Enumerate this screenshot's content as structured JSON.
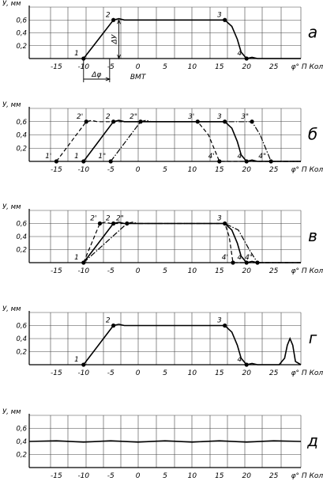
{
  "chart_data": [
    {
      "id": "a",
      "type": "line",
      "panel_letter": "а",
      "y_unit": "У, мм",
      "x_unit": "φ° П Кол В",
      "xlim": [
        -20,
        30
      ],
      "ylim": [
        0,
        0.8
      ],
      "x_ticks": [
        "-15",
        "-10",
        "-5",
        "0",
        "5",
        "10",
        "15",
        "20",
        "25"
      ],
      "y_ticks": [
        "0,2",
        "0,4",
        "0,6"
      ],
      "annotations": {
        "dy": "ΔУ",
        "dphi": "Δφ",
        "bmt": "ВМТ"
      },
      "series": [
        {
          "style": "solid",
          "x": [
            -10,
            -4.5,
            -3.5,
            -2.5,
            16,
            17.3,
            18.3,
            19,
            20,
            21,
            22,
            30
          ],
          "y": [
            0,
            0.6,
            0.62,
            0.6,
            0.6,
            0.5,
            0.3,
            0.1,
            0,
            0.02,
            0,
            0
          ]
        }
      ],
      "points": [
        {
          "label": "1",
          "x": -10,
          "y": 0
        },
        {
          "label": "2",
          "x": -4.5,
          "y": 0.6
        },
        {
          "label": "3",
          "x": 16,
          "y": 0.6
        },
        {
          "label": "4",
          "x": 20,
          "y": 0
        }
      ]
    },
    {
      "id": "b",
      "type": "line",
      "panel_letter": "б",
      "y_unit": "У, мм",
      "x_unit": "φ° П Кол В",
      "xlim": [
        -20,
        30
      ],
      "ylim": [
        0,
        0.8
      ],
      "x_ticks": [
        "-15",
        "-10",
        "-5",
        "0",
        "5",
        "10",
        "15",
        "20",
        "25"
      ],
      "y_ticks": [
        "0,2",
        "0,4",
        "0,6"
      ],
      "series": [
        {
          "style": "solid",
          "x": [
            -10,
            -4.5,
            -3.5,
            -2.5,
            16,
            17.3,
            18.3,
            19,
            20,
            21,
            22,
            30
          ],
          "y": [
            0,
            0.6,
            0.62,
            0.6,
            0.6,
            0.5,
            0.3,
            0.1,
            0,
            0.02,
            0,
            0
          ]
        },
        {
          "style": "dashed",
          "x": [
            -15,
            -9.5,
            -8.5,
            -7.5,
            11,
            13,
            15,
            30
          ],
          "y": [
            0,
            0.6,
            0.62,
            0.6,
            0.6,
            0.4,
            0,
            0
          ]
        },
        {
          "style": "dashdot",
          "x": [
            -5,
            0.5,
            1.5,
            2.5,
            21,
            22.5,
            24.5,
            30
          ],
          "y": [
            0,
            0.6,
            0.62,
            0.6,
            0.6,
            0.4,
            0,
            0
          ]
        }
      ],
      "points": [
        {
          "label": "1'",
          "x": -15,
          "y": 0
        },
        {
          "label": "1",
          "x": -10,
          "y": 0
        },
        {
          "label": "1\"",
          "x": -5,
          "y": 0
        },
        {
          "label": "2'",
          "x": -9.5,
          "y": 0.6
        },
        {
          "label": "2",
          "x": -4.5,
          "y": 0.6
        },
        {
          "label": "2\"",
          "x": 0.5,
          "y": 0.6
        },
        {
          "label": "3'",
          "x": 11,
          "y": 0.6
        },
        {
          "label": "3",
          "x": 16,
          "y": 0.6
        },
        {
          "label": "3\"",
          "x": 21,
          "y": 0.6
        },
        {
          "label": "4'",
          "x": 15,
          "y": 0
        },
        {
          "label": "4",
          "x": 20,
          "y": 0
        },
        {
          "label": "4\"",
          "x": 24.5,
          "y": 0
        }
      ]
    },
    {
      "id": "c",
      "type": "line",
      "panel_letter": "в",
      "y_unit": "У, мм",
      "x_unit": "φ° П Кол В",
      "xlim": [
        -20,
        30
      ],
      "ylim": [
        0,
        0.8
      ],
      "x_ticks": [
        "-15",
        "-10",
        "-5",
        "0",
        "5",
        "10",
        "15",
        "20",
        "25"
      ],
      "y_ticks": [
        "0,2",
        "0,4",
        "0,6"
      ],
      "series": [
        {
          "style": "solid",
          "x": [
            -10,
            -4.5,
            -3.5,
            -2.5,
            16,
            17.3,
            18.3,
            19,
            20,
            21,
            22,
            30
          ],
          "y": [
            0,
            0.6,
            0.62,
            0.6,
            0.6,
            0.5,
            0.3,
            0.1,
            0,
            0.02,
            0,
            0
          ]
        },
        {
          "style": "dashed",
          "x": [
            -10,
            -7,
            -6,
            -5,
            16,
            16.8,
            17.5,
            30
          ],
          "y": [
            0,
            0.6,
            0.62,
            0.6,
            0.6,
            0.4,
            0,
            0
          ]
        },
        {
          "style": "dashdot",
          "x": [
            -10,
            -2,
            -1,
            0,
            16,
            18.5,
            20.5,
            22,
            30
          ],
          "y": [
            0,
            0.6,
            0.62,
            0.6,
            0.6,
            0.5,
            0.2,
            0,
            0
          ]
        }
      ],
      "points": [
        {
          "label": "1",
          "x": -10,
          "y": 0
        },
        {
          "label": "2'",
          "x": -7,
          "y": 0.6
        },
        {
          "label": "2",
          "x": -4.5,
          "y": 0.6
        },
        {
          "label": "2\"",
          "x": -2,
          "y": 0.6
        },
        {
          "label": "3",
          "x": 16,
          "y": 0.6
        },
        {
          "label": "4'",
          "x": 17.5,
          "y": 0
        },
        {
          "label": "4",
          "x": 20,
          "y": 0
        },
        {
          "label": "4\"",
          "x": 22,
          "y": 0
        }
      ]
    },
    {
      "id": "d",
      "type": "line",
      "panel_letter": "г",
      "y_unit": "У, мм",
      "x_unit": "φ° П Кол В",
      "xlim": [
        -20,
        30
      ],
      "ylim": [
        0,
        0.8
      ],
      "x_ticks": [
        "-15",
        "-10",
        "-5",
        "0",
        "5",
        "10",
        "15",
        "20",
        "25"
      ],
      "y_ticks": [
        "0,2",
        "0,4",
        "0,6"
      ],
      "series": [
        {
          "style": "solid",
          "x": [
            -10,
            -4.5,
            -3.5,
            -2.5,
            16,
            17.3,
            18.3,
            19,
            20,
            21,
            22,
            26,
            27,
            27.5,
            28,
            28.5,
            29,
            30
          ],
          "y": [
            0,
            0.6,
            0.62,
            0.6,
            0.6,
            0.5,
            0.3,
            0.1,
            0,
            0.02,
            0,
            0,
            0.1,
            0.3,
            0.4,
            0.3,
            0.05,
            0
          ]
        }
      ],
      "points": [
        {
          "label": "1",
          "x": -10,
          "y": 0
        },
        {
          "label": "2",
          "x": -4.5,
          "y": 0.6
        },
        {
          "label": "3",
          "x": 16,
          "y": 0.6
        },
        {
          "label": "4",
          "x": 20,
          "y": 0
        }
      ]
    },
    {
      "id": "e",
      "type": "line",
      "panel_letter": "д",
      "y_unit": "У, мм",
      "x_unit": "φ° П Кол В",
      "xlim": [
        -20,
        30
      ],
      "ylim": [
        0,
        0.8
      ],
      "x_ticks": [
        "-15",
        "-10",
        "-5",
        "0",
        "5",
        "10",
        "15",
        "20",
        "25"
      ],
      "y_ticks": [
        "0,2",
        "0,4",
        "0,6"
      ],
      "series": [
        {
          "style": "solid",
          "x": [
            -20,
            -15,
            -10,
            -5,
            0,
            5,
            10,
            15,
            20,
            25,
            30
          ],
          "y": [
            0.4,
            0.41,
            0.39,
            0.41,
            0.39,
            0.41,
            0.39,
            0.41,
            0.39,
            0.41,
            0.4
          ]
        }
      ],
      "points": []
    }
  ]
}
